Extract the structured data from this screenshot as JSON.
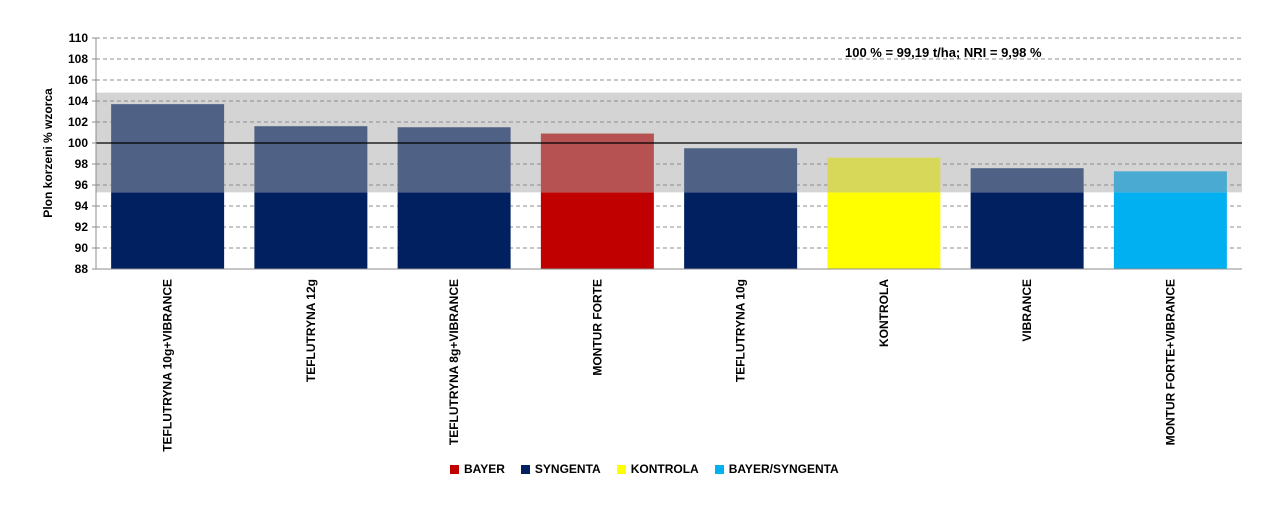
{
  "chart_data": {
    "type": "bar",
    "ylabel": "Plon korzeni % wzorca",
    "xlabel": "",
    "ylim": [
      88,
      110
    ],
    "yticks": [
      88,
      90,
      92,
      94,
      96,
      98,
      100,
      102,
      104,
      106,
      108,
      110
    ],
    "grid": "horizontal dashed",
    "reference_line": 100,
    "nri_band": [
      95.3,
      104.8
    ],
    "annotation": "100 % = 99,19 t/ha; NRI = 9,98 %",
    "categories": [
      "TEFLUTRYNA 10g+VIBRANCE",
      "TEFLUTRYNA 12g",
      "TEFLUTRYNA 8g+VIBRANCE",
      "MONTUR FORTE",
      "TEFLUTRYNA 10g",
      "KONTROLA",
      "VIBRANCE",
      "MONTUR FORTE+VIBRANCE"
    ],
    "values": [
      103.7,
      101.6,
      101.5,
      100.9,
      99.5,
      98.6,
      97.6,
      97.3
    ],
    "groups": [
      "SYNGENTA",
      "SYNGENTA",
      "SYNGENTA",
      "BAYER",
      "SYNGENTA",
      "KONTROLA",
      "SYNGENTA",
      "BAYER/SYNGENTA"
    ],
    "legend": [
      {
        "name": "BAYER",
        "color": "#c00000"
      },
      {
        "name": "SYNGENTA",
        "color": "#002060"
      },
      {
        "name": "KONTROLA",
        "color": "#ffff00"
      },
      {
        "name": "BAYER/SYNGENTA",
        "color": "#00b0f0"
      }
    ],
    "legend_position": "bottom",
    "band_overlay_colors": {
      "SYNGENTA": "#4f6184",
      "BAYER": "#b75252",
      "KONTROLA": "#d7d75a",
      "BAYER/SYNGENTA": "#4aaad2"
    },
    "band_color": "#d4d4d4"
  }
}
